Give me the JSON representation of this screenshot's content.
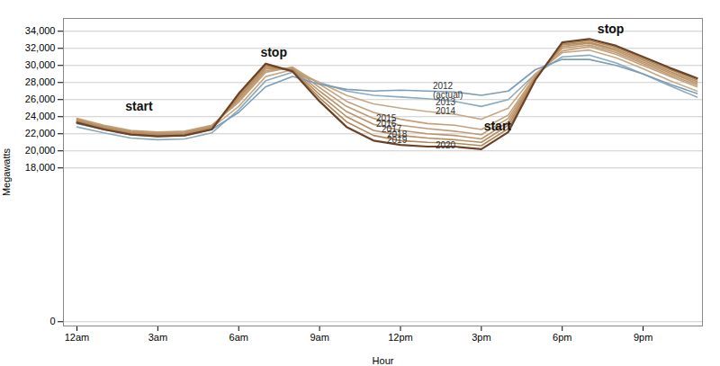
{
  "chart_data": {
    "type": "line",
    "xlabel": "Hour",
    "ylabel": "Megawatts",
    "x": [
      0,
      1,
      2,
      3,
      4,
      5,
      6,
      7,
      8,
      9,
      10,
      11,
      12,
      13,
      14,
      15,
      16,
      17,
      18,
      19,
      20,
      21,
      22,
      23
    ],
    "xlim": [
      -0.5,
      23.2
    ],
    "xticks": [
      {
        "value": 0,
        "label": "12am"
      },
      {
        "value": 3,
        "label": "3am"
      },
      {
        "value": 6,
        "label": "6am"
      },
      {
        "value": 9,
        "label": "9am"
      },
      {
        "value": 12,
        "label": "12pm"
      },
      {
        "value": 15,
        "label": "3pm"
      },
      {
        "value": 18,
        "label": "6pm"
      },
      {
        "value": 21,
        "label": "9pm"
      }
    ],
    "ylim": [
      -500,
      35500
    ],
    "yticks": [
      0,
      {
        "value": 18000,
        "label": "18,000"
      },
      {
        "value": 20000,
        "label": "20,000"
      },
      {
        "value": 22000,
        "label": "22,000"
      },
      {
        "value": 24000,
        "label": "24,000"
      },
      {
        "value": 26000,
        "label": "26,000"
      },
      {
        "value": 28000,
        "label": "28,000"
      },
      {
        "value": 30000,
        "label": "30,000"
      },
      {
        "value": 32000,
        "label": "32,000"
      },
      {
        "value": 34000,
        "label": "34,000"
      }
    ],
    "grid": true,
    "series": [
      {
        "name": "2013",
        "color": "#8aabbb",
        "values": [
          22800,
          22100,
          21500,
          21300,
          21400,
          22100,
          24800,
          28200,
          29200,
          28000,
          27000,
          26500,
          26300,
          26100,
          25800,
          25200,
          26000,
          29000,
          31000,
          31200,
          30300,
          29000,
          27600,
          26300
        ]
      },
      {
        "name": "2014",
        "color": "#c8a882",
        "values": [
          23500,
          22700,
          22100,
          21900,
          22000,
          22700,
          25200,
          28700,
          29500,
          28000,
          26500,
          25500,
          25000,
          24600,
          24300,
          23700,
          25000,
          29000,
          31500,
          31800,
          30900,
          29600,
          28200,
          27000
        ]
      },
      {
        "name": "2015",
        "color": "#c4a07a",
        "values": [
          23800,
          23000,
          22400,
          22200,
          22300,
          23000,
          25700,
          29200,
          29800,
          27800,
          25800,
          24500,
          23700,
          23200,
          23000,
          22500,
          24200,
          28800,
          31700,
          32200,
          31300,
          30000,
          28700,
          27500
        ]
      },
      {
        "name": "2016",
        "color": "#bf9a72",
        "values": [
          23700,
          22900,
          22300,
          22100,
          22200,
          22900,
          25900,
          29400,
          29700,
          27400,
          25200,
          23800,
          23000,
          22600,
          22300,
          21900,
          23800,
          28700,
          32000,
          32400,
          31500,
          30200,
          28900,
          27700
        ]
      },
      {
        "name": "2017",
        "color": "#ba946a",
        "values": [
          23600,
          22800,
          22200,
          22000,
          22100,
          22800,
          26100,
          29600,
          29600,
          27000,
          24600,
          23100,
          22400,
          22000,
          21800,
          21400,
          23400,
          28600,
          32200,
          32600,
          31700,
          30400,
          29100,
          27900
        ]
      },
      {
        "name": "2018",
        "color": "#b58e62",
        "values": [
          23500,
          22700,
          22100,
          21900,
          22000,
          22700,
          26300,
          29800,
          29500,
          26600,
          24000,
          22400,
          21800,
          21500,
          21300,
          21000,
          23000,
          28500,
          32400,
          32700,
          31900,
          30600,
          29300,
          28100
        ]
      },
      {
        "name": "2019",
        "color": "#b08858",
        "values": [
          23400,
          22600,
          22000,
          21800,
          21900,
          22600,
          26500,
          30000,
          29400,
          26200,
          23400,
          21800,
          21200,
          21000,
          20900,
          20600,
          22600,
          28400,
          32500,
          32900,
          32100,
          30800,
          29500,
          28300
        ]
      },
      {
        "name": "2012",
        "color": "#7a9db8",
        "values": [
          23200,
          22500,
          21900,
          21700,
          21800,
          22500,
          24500,
          27500,
          28700,
          27800,
          27200,
          27000,
          27100,
          27000,
          26900,
          26500,
          27000,
          29500,
          30700,
          30700,
          30000,
          29000,
          27800,
          26700
        ]
      },
      {
        "name": "2020",
        "color": "#6b4226",
        "values": [
          23300,
          22500,
          21900,
          21700,
          21800,
          22500,
          26700,
          30200,
          29300,
          25800,
          22800,
          21200,
          20700,
          20500,
          20500,
          20200,
          22200,
          28300,
          32700,
          33100,
          32300,
          31000,
          29700,
          28500
        ]
      }
    ],
    "annotations": [
      {
        "text": "stop",
        "x": 7.3,
        "y": 31500
      },
      {
        "text": "stop",
        "x": 19.8,
        "y": 34200
      },
      {
        "text": "start",
        "x": 2.3,
        "y": 25200
      },
      {
        "text": "start",
        "x": 15.6,
        "y": 22900
      },
      {
        "text": "2012\n(actual)",
        "x": 13.2,
        "y": 27100
      },
      {
        "text": "2013",
        "x": 13.3,
        "y": 25700
      },
      {
        "text": "2014",
        "x": 13.3,
        "y": 24600
      },
      {
        "text": "2015",
        "x": 11.1,
        "y": 23800
      },
      {
        "text": "2016",
        "x": 11.1,
        "y": 23150
      },
      {
        "text": "2017",
        "x": 11.3,
        "y": 22500
      },
      {
        "text": "2018",
        "x": 11.5,
        "y": 21900
      },
      {
        "text": "2019",
        "x": 11.5,
        "y": 21300
      },
      {
        "text": "2020",
        "x": 13.3,
        "y": 20600
      }
    ]
  }
}
